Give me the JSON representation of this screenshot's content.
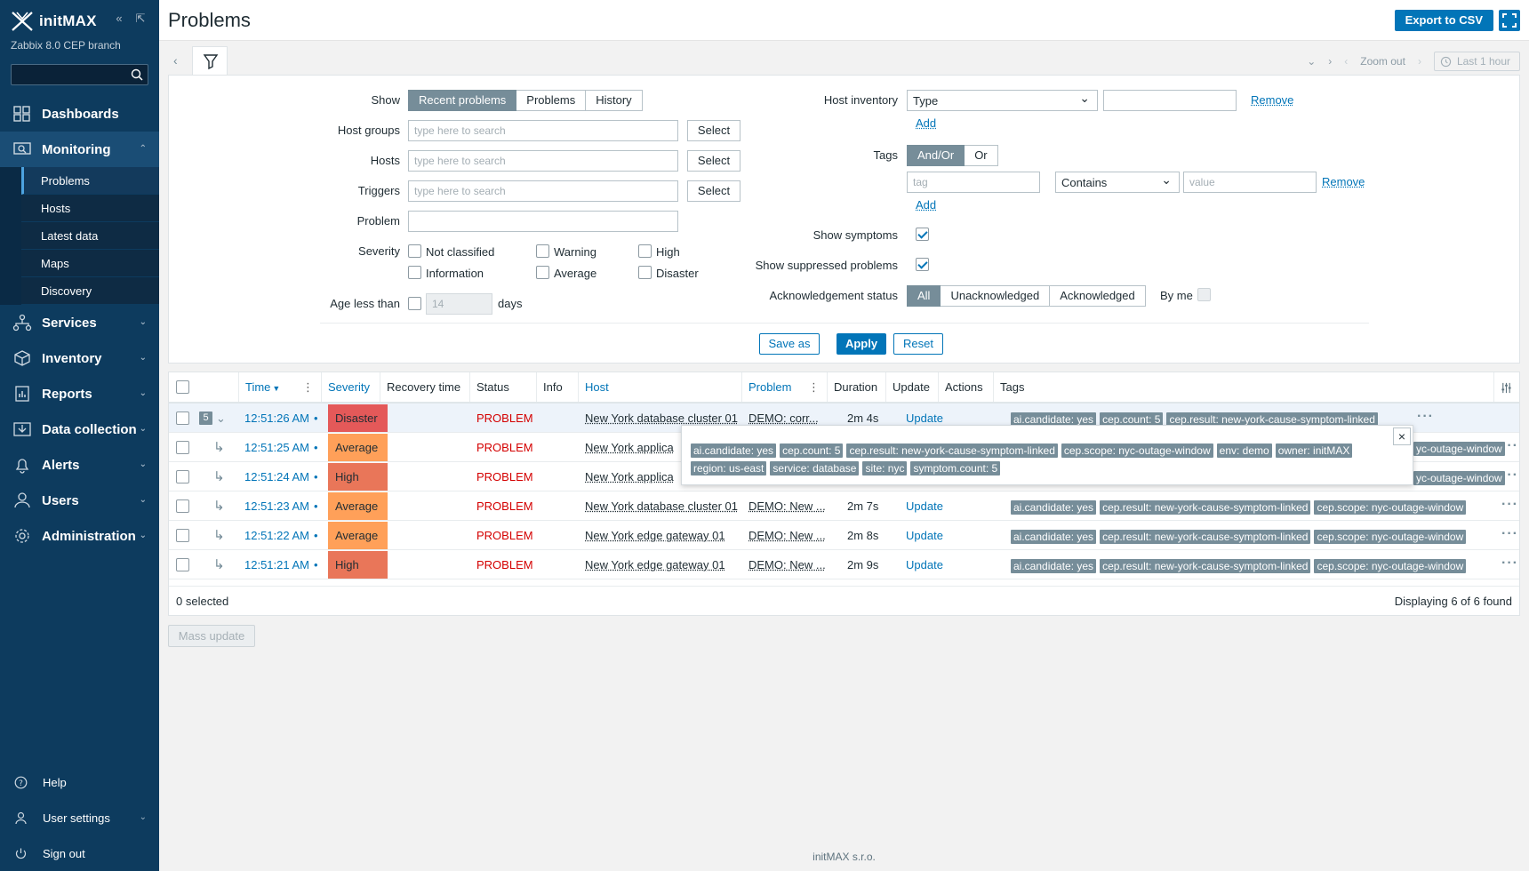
{
  "sidebar": {
    "logo_text": "initMAX",
    "version": "Zabbix 8.0 CEP branch",
    "menu": [
      {
        "label": "Dashboards",
        "icon": "dashboards-icon"
      },
      {
        "label": "Monitoring",
        "icon": "monitoring-icon"
      },
      {
        "label": "Services",
        "icon": "services-icon"
      },
      {
        "label": "Inventory",
        "icon": "inventory-icon"
      },
      {
        "label": "Reports",
        "icon": "reports-icon"
      },
      {
        "label": "Data collection",
        "icon": "data-collection-icon"
      },
      {
        "label": "Alerts",
        "icon": "alerts-icon"
      },
      {
        "label": "Users",
        "icon": "users-icon"
      },
      {
        "label": "Administration",
        "icon": "administration-icon"
      }
    ],
    "submenu": [
      "Problems",
      "Hosts",
      "Latest data",
      "Maps",
      "Discovery"
    ],
    "bottom": [
      {
        "label": "Help"
      },
      {
        "label": "User settings"
      },
      {
        "label": "Sign out"
      }
    ]
  },
  "header": {
    "title": "Problems",
    "export_label": "Export to CSV"
  },
  "timebar": {
    "zoom_out": "Zoom out",
    "period": "Last 1 hour"
  },
  "filter": {
    "show_label": "Show",
    "show_options": [
      "Recent problems",
      "Problems",
      "History"
    ],
    "host_groups_label": "Host groups",
    "hosts_label": "Hosts",
    "triggers_label": "Triggers",
    "problem_label": "Problem",
    "search_placeholder": "type here to search",
    "select_label": "Select",
    "severity_label": "Severity",
    "severities": [
      "Not classified",
      "Information",
      "Warning",
      "Average",
      "High",
      "Disaster"
    ],
    "age_label": "Age less than",
    "age_value": "14",
    "age_unit": "days",
    "host_inventory_label": "Host inventory",
    "inventory_type": "Type",
    "remove_label": "Remove",
    "add_label": "Add",
    "tags_label": "Tags",
    "tags_ops": [
      "And/Or",
      "Or"
    ],
    "tag_placeholder": "tag",
    "tag_operator": "Contains",
    "value_placeholder": "value",
    "show_symptoms_label": "Show symptoms",
    "show_suppressed_label": "Show suppressed problems",
    "ack_label": "Acknowledgement status",
    "ack_options": [
      "All",
      "Unacknowledged",
      "Acknowledged"
    ],
    "by_me_label": "By me",
    "save_as": "Save as",
    "apply": "Apply",
    "reset": "Reset"
  },
  "table": {
    "headers": [
      "Time",
      "Severity",
      "Recovery time",
      "Status",
      "Info",
      "Host",
      "Problem",
      "Duration",
      "Update",
      "Actions",
      "Tags"
    ],
    "sort_arrow": "▼",
    "symptom_count": "5",
    "rows": [
      {
        "time": "12:51:26 AM",
        "severity": "Disaster",
        "sev_color": "#e45959",
        "status": "PROBLEM",
        "host": "New York database cluster 01",
        "problem": "DEMO: corr...",
        "duration": "2m 4s",
        "update": "Update",
        "tags": [
          "ai.candidate: yes",
          "cep.count: 5",
          "cep.result: new-york-cause-symptom-linked"
        ]
      },
      {
        "time": "12:51:25 AM",
        "severity": "Average",
        "sev_color": "#ffa059",
        "status": "PROBLEM",
        "host": "New York applica",
        "problem": "",
        "duration": "",
        "update": "",
        "tags": [
          "yc-outage-window"
        ]
      },
      {
        "time": "12:51:24 AM",
        "severity": "High",
        "sev_color": "#e97659",
        "status": "PROBLEM",
        "host": "New York applica",
        "problem": "",
        "duration": "",
        "update": "",
        "tags": [
          "yc-outage-window"
        ]
      },
      {
        "time": "12:51:23 AM",
        "severity": "Average",
        "sev_color": "#ffa059",
        "status": "PROBLEM",
        "host": "New York database cluster 01",
        "problem": "DEMO: New ...",
        "duration": "2m 7s",
        "update": "Update",
        "tags": [
          "ai.candidate: yes",
          "cep.result: new-york-cause-symptom-linked",
          "cep.scope: nyc-outage-window"
        ]
      },
      {
        "time": "12:51:22 AM",
        "severity": "Average",
        "sev_color": "#ffa059",
        "status": "PROBLEM",
        "host": "New York edge gateway 01",
        "problem": "DEMO: New ...",
        "duration": "2m 8s",
        "update": "Update",
        "tags": [
          "ai.candidate: yes",
          "cep.result: new-york-cause-symptom-linked",
          "cep.scope: nyc-outage-window"
        ]
      },
      {
        "time": "12:51:21 AM",
        "severity": "High",
        "sev_color": "#e97659",
        "status": "PROBLEM",
        "host": "New York edge gateway 01",
        "problem": "DEMO: New ...",
        "duration": "2m 9s",
        "update": "Update",
        "tags": [
          "ai.candidate: yes",
          "cep.result: new-york-cause-symptom-linked",
          "cep.scope: nyc-outage-window"
        ]
      }
    ],
    "selected_text": "0 selected",
    "displaying_text": "Displaying 6 of 6 found"
  },
  "popup": {
    "tags": [
      "ai.candidate: yes",
      "cep.count: 5",
      "cep.result: new-york-cause-symptom-linked",
      "cep.scope: nyc-outage-window",
      "env: demo",
      "owner: initMAX",
      "region: us-east",
      "service: database",
      "site: nyc",
      "symptom.count: 5"
    ]
  },
  "mass_update": "Mass update",
  "footer": "initMAX s.r.o."
}
